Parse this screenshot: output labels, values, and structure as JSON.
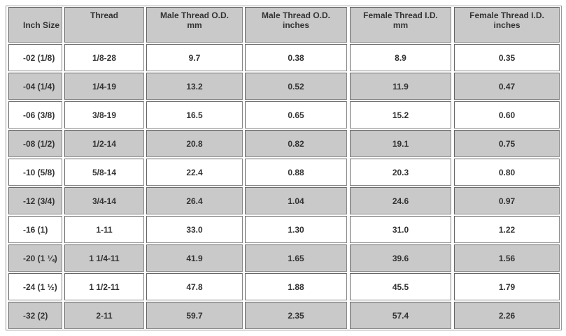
{
  "table": {
    "header": [
      "Inch Size",
      "Thread",
      "Male Thread O.D.\nmm",
      "Male Thread O.D.\ninches",
      "Female Thread I.D.\nmm",
      "Female Thread I.D.\ninches"
    ],
    "rows": [
      [
        "-02 (1/8)",
        "1/8-28",
        "9.7",
        "0.38",
        "8.9",
        "0.35"
      ],
      [
        "-04 (1/4)",
        "1/4-19",
        "13.2",
        "0.52",
        "11.9",
        "0.47"
      ],
      [
        "-06 (3/8)",
        "3/8-19",
        "16.5",
        "0.65",
        "15.2",
        "0.60"
      ],
      [
        "-08 (1/2)",
        "1/2-14",
        "20.8",
        "0.82",
        "19.1",
        "0.75"
      ],
      [
        "-10 (5/8)",
        "5/8-14",
        "22.4",
        "0.88",
        "20.3",
        "0.80"
      ],
      [
        "-12 (3/4)",
        "3/4-14",
        "26.4",
        "1.04",
        "24.6",
        "0.97"
      ],
      [
        "-16 (1)",
        "1-11",
        "33.0",
        "1.30",
        "31.0",
        "1.22"
      ],
      [
        "-20 (1 ¼)",
        "1 1/4-11",
        "41.9",
        "1.65",
        "39.6",
        "1.56"
      ],
      [
        "-24 (1 ½)",
        "1 1/2-11",
        "47.8",
        "1.88",
        "45.5",
        "1.79"
      ],
      [
        "-32 (2)",
        "2-11",
        "59.7",
        "2.35",
        "57.4",
        "2.26"
      ]
    ]
  }
}
